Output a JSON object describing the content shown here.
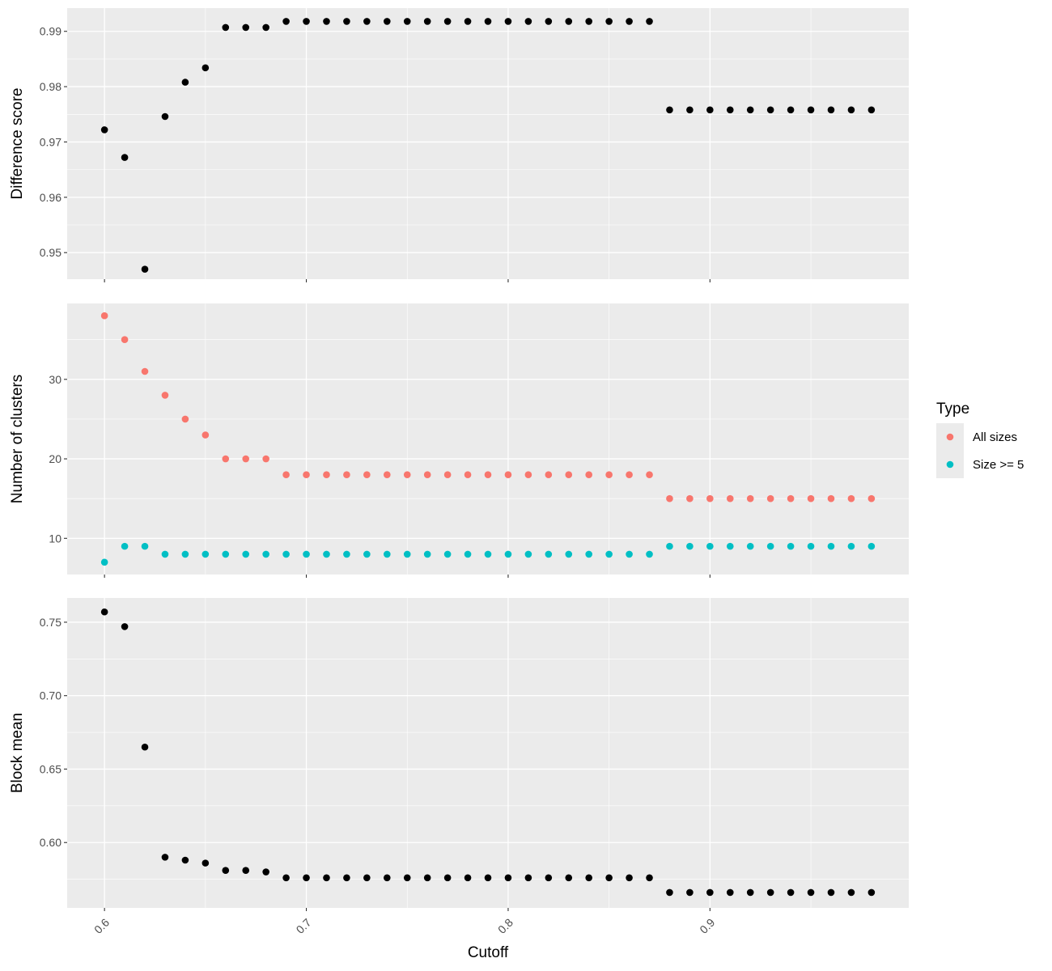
{
  "chart_data": {
    "type": "scatter",
    "xlabel": "Cutoff",
    "x_ticks": [
      "0.6",
      "0.7",
      "0.8",
      "0.9"
    ],
    "x": [
      0.6,
      0.61,
      0.62,
      0.63,
      0.64,
      0.65,
      0.66,
      0.67,
      0.68,
      0.69,
      0.7,
      0.71,
      0.72,
      0.73,
      0.74,
      0.75,
      0.76,
      0.77,
      0.78,
      0.79,
      0.8,
      0.81,
      0.82,
      0.83,
      0.84,
      0.85,
      0.86,
      0.87,
      0.88,
      0.89,
      0.9,
      0.91,
      0.92,
      0.93,
      0.94,
      0.95,
      0.96,
      0.97,
      0.98
    ],
    "xlim": [
      0.5815,
      0.9985
    ],
    "panels": [
      {
        "ylabel": "Difference score",
        "ylim": [
          0.9452,
          0.9942
        ],
        "y_ticks": [
          "0.95",
          "0.96",
          "0.97",
          "0.98",
          "0.99"
        ],
        "series": [
          {
            "color": "#000000",
            "values": [
              0.9722,
              0.9672,
              0.947,
              0.9746,
              0.9808,
              0.9834,
              0.9907,
              0.9907,
              0.9907,
              0.9918,
              0.9918,
              0.9918,
              0.9918,
              0.9918,
              0.9918,
              0.9918,
              0.9918,
              0.9918,
              0.9918,
              0.9918,
              0.9918,
              0.9918,
              0.9918,
              0.9918,
              0.9918,
              0.9918,
              0.9918,
              0.9918,
              0.9758,
              0.9758,
              0.9758,
              0.9758,
              0.9758,
              0.9758,
              0.9758,
              0.9758,
              0.9758,
              0.9758,
              0.9758
            ]
          }
        ]
      },
      {
        "ylabel": "Number of clusters",
        "ylim": [
          5.45,
          39.55
        ],
        "y_ticks": [
          "10",
          "20",
          "30"
        ],
        "series": [
          {
            "name": "All sizes",
            "color": "#F8766D",
            "values": [
              38,
              35,
              31,
              28,
              25,
              23,
              20,
              20,
              20,
              18,
              18,
              18,
              18,
              18,
              18,
              18,
              18,
              18,
              18,
              18,
              18,
              18,
              18,
              18,
              18,
              18,
              18,
              18,
              15,
              15,
              15,
              15,
              15,
              15,
              15,
              15,
              15,
              15,
              15
            ]
          },
          {
            "name": "Size >= 5",
            "color": "#00BFC4",
            "values": [
              7,
              9,
              9,
              8,
              8,
              8,
              8,
              8,
              8,
              8,
              8,
              8,
              8,
              8,
              8,
              8,
              8,
              8,
              8,
              8,
              8,
              8,
              8,
              8,
              8,
              8,
              8,
              8,
              9,
              9,
              9,
              9,
              9,
              9,
              9,
              9,
              9,
              9,
              9
            ]
          }
        ]
      },
      {
        "ylabel": "Block mean",
        "ylim": [
          0.5555,
          0.7665
        ],
        "y_ticks": [
          "0.60",
          "0.65",
          "0.70",
          "0.75"
        ],
        "series": [
          {
            "color": "#000000",
            "values": [
              0.757,
              0.747,
              0.665,
              0.59,
              0.588,
              0.586,
              0.581,
              0.581,
              0.58,
              0.576,
              0.576,
              0.576,
              0.576,
              0.576,
              0.576,
              0.576,
              0.576,
              0.576,
              0.576,
              0.576,
              0.576,
              0.576,
              0.576,
              0.576,
              0.576,
              0.576,
              0.576,
              0.576,
              0.566,
              0.566,
              0.566,
              0.566,
              0.566,
              0.566,
              0.566,
              0.566,
              0.566,
              0.566,
              0.566
            ]
          }
        ]
      }
    ],
    "legend": {
      "title": "Type",
      "position": "right",
      "items": [
        {
          "label": "All sizes",
          "color": "#F8766D"
        },
        {
          "label": "Size >= 5",
          "color": "#00BFC4"
        }
      ]
    },
    "grid": true
  }
}
